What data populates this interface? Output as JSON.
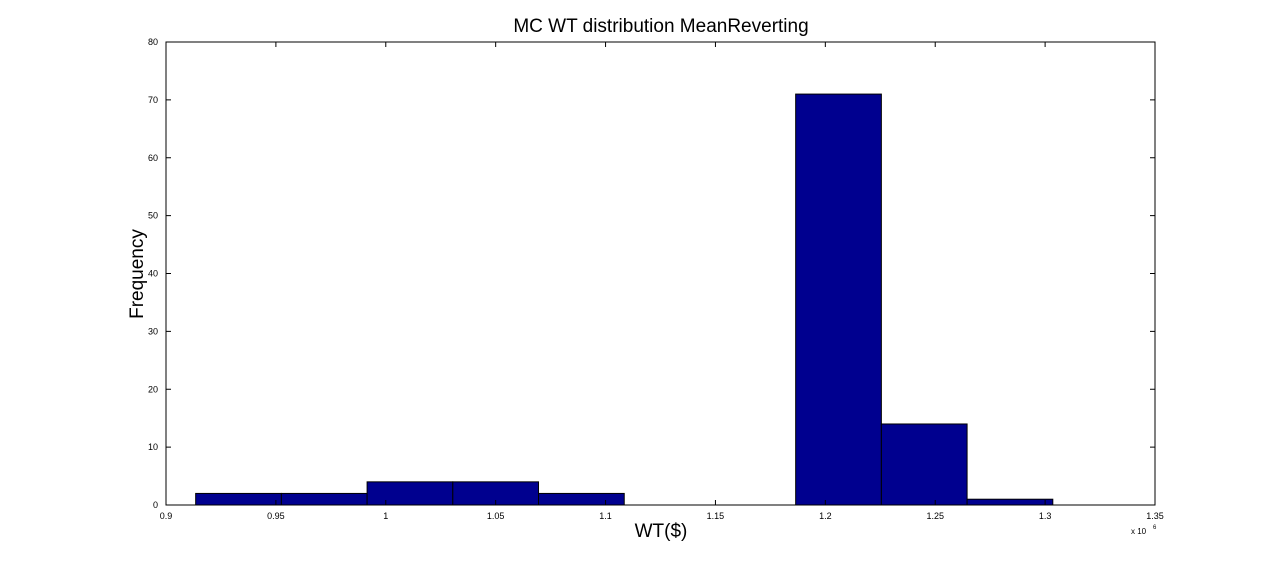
{
  "chart_data": {
    "type": "bar",
    "title": "MC WT distribution MeanReverting",
    "xlabel": "WT($)",
    "ylabel": "Frequency",
    "x_exponent_label": "x 10",
    "x_exponent_power": "6",
    "xlim": [
      0.9,
      1.35
    ],
    "ylim": [
      0,
      80
    ],
    "xticks": [
      0.9,
      0.95,
      1,
      1.05,
      1.1,
      1.15,
      1.2,
      1.25,
      1.3,
      1.35
    ],
    "xtick_labels": [
      "0.9",
      "0.95",
      "1",
      "1.05",
      "1.1",
      "1.15",
      "1.2",
      "1.25",
      "1.3",
      "1.35"
    ],
    "yticks": [
      0,
      10,
      20,
      30,
      40,
      50,
      60,
      70,
      80
    ],
    "ytick_labels": [
      "0",
      "10",
      "20",
      "30",
      "40",
      "50",
      "60",
      "70",
      "80"
    ],
    "grid": false,
    "bar_color": "#00008f",
    "bins": [
      {
        "x0": 0.9135,
        "x1": 0.9525,
        "value": 2
      },
      {
        "x0": 0.9525,
        "x1": 0.9915,
        "value": 2
      },
      {
        "x0": 0.9915,
        "x1": 1.0305,
        "value": 4
      },
      {
        "x0": 1.0305,
        "x1": 1.0695,
        "value": 4
      },
      {
        "x0": 1.0695,
        "x1": 1.1085,
        "value": 2
      },
      {
        "x0": 1.1085,
        "x1": 1.1475,
        "value": 0
      },
      {
        "x0": 1.1475,
        "x1": 1.1865,
        "value": 0
      },
      {
        "x0": 1.1865,
        "x1": 1.2255,
        "value": 71
      },
      {
        "x0": 1.2255,
        "x1": 1.2645,
        "value": 14
      },
      {
        "x0": 1.2645,
        "x1": 1.3035,
        "value": 1
      }
    ]
  }
}
